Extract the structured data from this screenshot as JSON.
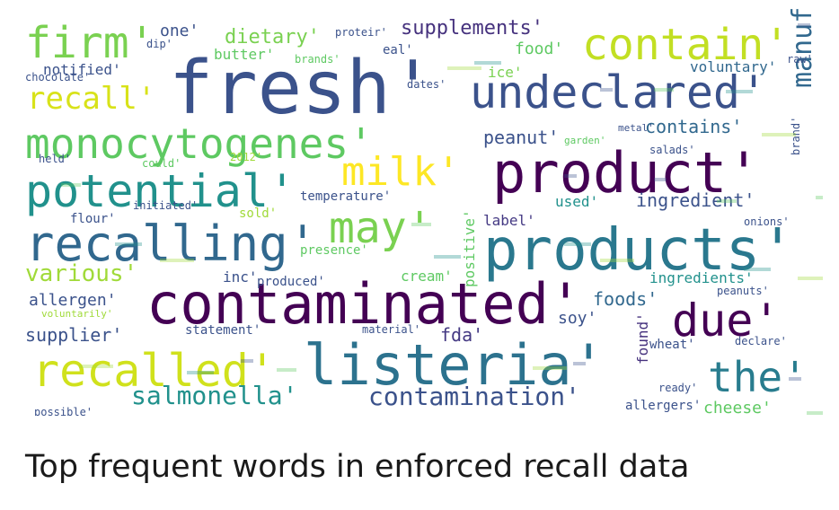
{
  "caption": "Top frequent words in enforced recall data",
  "chart_data": {
    "type": "wordcloud",
    "title": "Top frequent words in enforced recall data",
    "palette": "viridis",
    "words": [
      {
        "text": "fresh'",
        "weight": 100,
        "color": "#3b528b",
        "rotate": 0
      },
      {
        "text": "products'",
        "weight": 82,
        "color": "#2a788e",
        "rotate": 0
      },
      {
        "text": "listeria'",
        "weight": 76,
        "color": "#2c728e",
        "rotate": 0
      },
      {
        "text": "product'",
        "weight": 74,
        "color": "#440154",
        "rotate": 0
      },
      {
        "text": "contaminated'",
        "weight": 72,
        "color": "#440154",
        "rotate": 0
      },
      {
        "text": "undeclared'",
        "weight": 66,
        "color": "#3b528b",
        "rotate": 0
      },
      {
        "text": "recalling'",
        "weight": 66,
        "color": "#31688e",
        "rotate": 0
      },
      {
        "text": "contain'",
        "weight": 64,
        "color": "#c2df23",
        "rotate": 0
      },
      {
        "text": "monocytogenes'",
        "weight": 62,
        "color": "#5ec962",
        "rotate": 0
      },
      {
        "text": "potential'",
        "weight": 62,
        "color": "#21918c",
        "rotate": 0
      },
      {
        "text": "due'",
        "weight": 60,
        "color": "#440154",
        "rotate": 0
      },
      {
        "text": "recalled'",
        "weight": 58,
        "color": "#d0e11c",
        "rotate": 0
      },
      {
        "text": "the'",
        "weight": 56,
        "color": "#287c8e",
        "rotate": 0
      },
      {
        "text": "may'",
        "weight": 56,
        "color": "#7ad151",
        "rotate": 0
      },
      {
        "text": "milk'",
        "weight": 52,
        "color": "#fde725",
        "rotate": 0
      },
      {
        "text": "firm'",
        "weight": 52,
        "color": "#7ad151",
        "rotate": 0
      },
      {
        "text": "recall'",
        "weight": 40,
        "color": "#d8e219",
        "rotate": 0
      },
      {
        "text": "manufactured'",
        "weight": 36,
        "color": "#31688e",
        "rotate": 270
      },
      {
        "text": "salmonella'",
        "weight": 34,
        "color": "#21918c",
        "rotate": 0
      },
      {
        "text": "contamination'",
        "weight": 34,
        "color": "#3b528b",
        "rotate": 0
      },
      {
        "text": "various'",
        "weight": 32,
        "color": "#a0da39",
        "rotate": 0
      },
      {
        "text": "supplements'",
        "weight": 30,
        "color": "#46327e",
        "rotate": 0
      },
      {
        "text": "dietary'",
        "weight": 30,
        "color": "#7ad151",
        "rotate": 0
      },
      {
        "text": "ingredient'",
        "weight": 28,
        "color": "#3b528b",
        "rotate": 0
      },
      {
        "text": "peanut'",
        "weight": 26,
        "color": "#3b528b",
        "rotate": 0
      },
      {
        "text": "contains'",
        "weight": 26,
        "color": "#31688e",
        "rotate": 0
      },
      {
        "text": "foods'",
        "weight": 24,
        "color": "#31688e",
        "rotate": 0
      },
      {
        "text": "supplier'",
        "weight": 22,
        "color": "#3b528b",
        "rotate": 0
      },
      {
        "text": "allergen'",
        "weight": 22,
        "color": "#3b528b",
        "rotate": 0
      },
      {
        "text": "cheese'",
        "weight": 22,
        "color": "#5ec962",
        "rotate": 0
      },
      {
        "text": "soy'",
        "weight": 22,
        "color": "#3b528b",
        "rotate": 0
      },
      {
        "text": "fda'",
        "weight": 22,
        "color": "#443983",
        "rotate": 0
      },
      {
        "text": "label'",
        "weight": 20,
        "color": "#443983",
        "rotate": 0
      },
      {
        "text": "used'",
        "weight": 20,
        "color": "#21918c",
        "rotate": 0
      },
      {
        "text": "one'",
        "weight": 20,
        "color": "#3b528b",
        "rotate": 0
      },
      {
        "text": "notified'",
        "weight": 20,
        "color": "#3b528b",
        "rotate": 0
      },
      {
        "text": "food'",
        "weight": 20,
        "color": "#5ec962",
        "rotate": 0
      },
      {
        "text": "voluntary'",
        "weight": 18,
        "color": "#31688e",
        "rotate": 0
      },
      {
        "text": "ingredients'",
        "weight": 18,
        "color": "#21918c",
        "rotate": 0
      },
      {
        "text": "positive'",
        "weight": 20,
        "color": "#5ec962",
        "rotate": 270
      },
      {
        "text": "found'",
        "weight": 20,
        "color": "#46327e",
        "rotate": 270
      },
      {
        "text": "wheat'",
        "weight": 18,
        "color": "#3b528b",
        "rotate": 0
      },
      {
        "text": "allergers'",
        "weight": 16,
        "color": "#3b528b",
        "rotate": 0
      },
      {
        "text": "ready'",
        "weight": 16,
        "color": "#3b528b",
        "rotate": 0
      },
      {
        "text": "cream'",
        "weight": 18,
        "color": "#5ec962",
        "rotate": 0
      },
      {
        "text": "produced'",
        "weight": 16,
        "color": "#3b528b",
        "rotate": 0
      },
      {
        "text": "presence'",
        "weight": 16,
        "color": "#5ec962",
        "rotate": 0
      },
      {
        "text": "temperature'",
        "weight": 16,
        "color": "#3b528b",
        "rotate": 0
      },
      {
        "text": "flour'",
        "weight": 16,
        "color": "#3b528b",
        "rotate": 0
      },
      {
        "text": "initiated'",
        "weight": 14,
        "color": "#3b528b",
        "rotate": 0
      },
      {
        "text": "sold'",
        "weight": 16,
        "color": "#a0da39",
        "rotate": 0
      },
      {
        "text": "statement'",
        "weight": 16,
        "color": "#3b528b",
        "rotate": 0
      },
      {
        "text": "material'",
        "weight": 14,
        "color": "#3b528b",
        "rotate": 0
      },
      {
        "text": "salads'",
        "weight": 14,
        "color": "#3b528b",
        "rotate": 0
      },
      {
        "text": "onions'",
        "weight": 14,
        "color": "#3b528b",
        "rotate": 0
      },
      {
        "text": "peanuts'",
        "weight": 14,
        "color": "#3b528b",
        "rotate": 0
      },
      {
        "text": "declare'",
        "weight": 14,
        "color": "#3b528b",
        "rotate": 0
      },
      {
        "text": "inc'",
        "weight": 16,
        "color": "#3b528b",
        "rotate": 0
      },
      {
        "text": "butter'",
        "weight": 16,
        "color": "#5ec962",
        "rotate": 0
      },
      {
        "text": "ice'",
        "weight": 16,
        "color": "#7ad151",
        "rotate": 0
      },
      {
        "text": "brands'",
        "weight": 14,
        "color": "#5ec962",
        "rotate": 0
      },
      {
        "text": "could'",
        "weight": 12,
        "color": "#5ec962",
        "rotate": 0
      },
      {
        "text": "held'",
        "weight": 12,
        "color": "#3b528b",
        "rotate": 0
      },
      {
        "text": "possible'",
        "weight": 12,
        "color": "#3b528b",
        "rotate": 0
      },
      {
        "text": "chocolate'",
        "weight": 12,
        "color": "#3b528b",
        "rotate": 0
      },
      {
        "text": "metal'",
        "weight": 12,
        "color": "#3b528b",
        "rotate": 0
      },
      {
        "text": "garden'",
        "weight": 12,
        "color": "#5ec962",
        "rotate": 0
      },
      {
        "text": "eal'",
        "weight": 14,
        "color": "#3b528b",
        "rotate": 0
      },
      {
        "text": "dates'",
        "weight": 12,
        "color": "#3b528b",
        "rotate": 0
      },
      {
        "text": "raw'",
        "weight": 12,
        "color": "#3b528b",
        "rotate": 0
      },
      {
        "text": "2012'",
        "weight": 12,
        "color": "#a0da39",
        "rotate": 0
      },
      {
        "text": "voluntarily'",
        "weight": 12,
        "color": "#a0da39",
        "rotate": 0
      },
      {
        "text": "brand'",
        "weight": 12,
        "color": "#3b528b",
        "rotate": 270
      },
      {
        "text": "proteir'",
        "weight": 12,
        "color": "#3b528b",
        "rotate": 0
      },
      {
        "text": "dip'",
        "weight": 12,
        "color": "#3b528b",
        "rotate": 0
      }
    ]
  }
}
